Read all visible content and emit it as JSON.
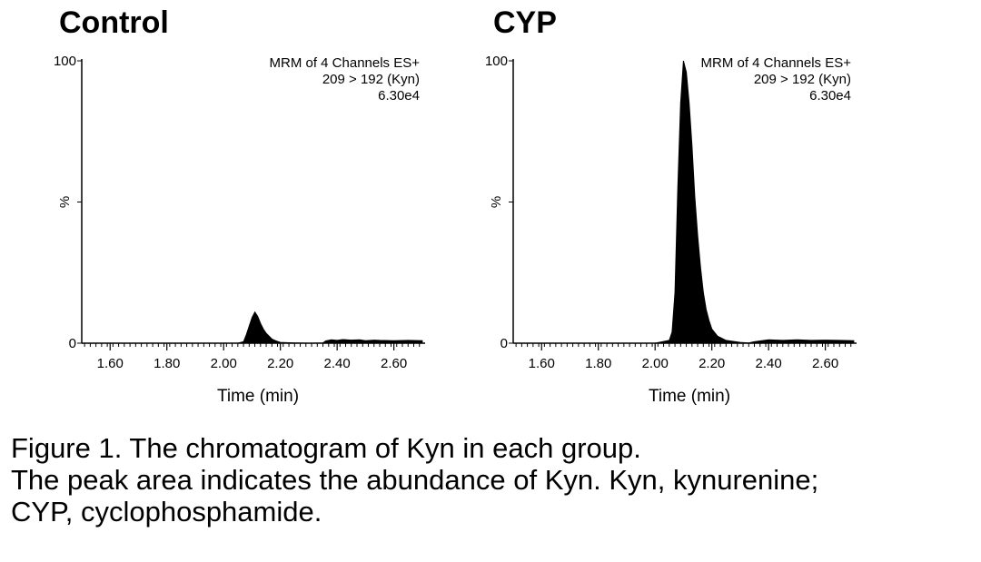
{
  "panels": [
    {
      "title": "Control",
      "info_lines": [
        "MRM of 4 Channels ES+",
        "209 > 192 (Kyn)",
        "6.30e4"
      ]
    },
    {
      "title": "CYP",
      "info_lines": [
        "MRM of 4 Channels ES+",
        "209 > 192 (Kyn)",
        "6.30e4"
      ]
    }
  ],
  "caption": {
    "line1": "Figure 1. The chromatogram of Kyn in each group.",
    "line2": "The peak area indicates the abundance of Kyn. Kyn, kynurenine;",
    "line3": "CYP, cyclophosphamide."
  },
  "chart_data": [
    {
      "type": "area",
      "title": "Control",
      "xlabel": "Time (min)",
      "ylabel": "%",
      "xlim": [
        1.5,
        2.71
      ],
      "ylim": [
        0,
        100
      ],
      "x_ticks": [
        "1.60",
        "1.80",
        "2.00",
        "2.20",
        "2.40",
        "2.60"
      ],
      "y_ticks": [
        "0",
        "100"
      ],
      "grid": false,
      "fill_color": "#000000",
      "x": [
        1.5,
        1.6,
        1.8,
        2.0,
        2.05,
        2.07,
        2.08,
        2.09,
        2.1,
        2.11,
        2.12,
        2.13,
        2.14,
        2.15,
        2.16,
        2.17,
        2.18,
        2.19,
        2.2,
        2.25,
        2.3,
        2.35,
        2.36,
        2.38,
        2.4,
        2.42,
        2.45,
        2.48,
        2.5,
        2.53,
        2.55,
        2.6,
        2.65,
        2.7
      ],
      "y": [
        0,
        0,
        0,
        0,
        0,
        0.5,
        3,
        6,
        9,
        11,
        9.5,
        7,
        5,
        3.5,
        2.5,
        1.5,
        1,
        0.6,
        0.3,
        0.1,
        0,
        0.1,
        0.8,
        1.2,
        1.0,
        1.3,
        1.1,
        1.2,
        0.9,
        1.1,
        1.0,
        0.9,
        1.0,
        0.9
      ]
    },
    {
      "type": "area",
      "title": "CYP",
      "xlabel": "Time (min)",
      "ylabel": "%",
      "xlim": [
        1.5,
        2.71
      ],
      "ylim": [
        0,
        100
      ],
      "x_ticks": [
        "1.60",
        "1.80",
        "2.00",
        "2.20",
        "2.40",
        "2.60"
      ],
      "y_ticks": [
        "0",
        "100"
      ],
      "grid": false,
      "fill_color": "#000000",
      "x": [
        1.5,
        1.6,
        1.8,
        2.0,
        2.05,
        2.06,
        2.07,
        2.08,
        2.09,
        2.1,
        2.11,
        2.12,
        2.13,
        2.14,
        2.15,
        2.16,
        2.17,
        2.18,
        2.19,
        2.2,
        2.22,
        2.25,
        2.3,
        2.33,
        2.35,
        2.4,
        2.45,
        2.5,
        2.55,
        2.6,
        2.65,
        2.7
      ],
      "y": [
        0,
        0,
        0,
        0,
        1,
        4,
        18,
        55,
        85,
        100,
        96,
        85,
        70,
        52,
        38,
        27,
        18,
        12,
        8,
        5,
        2.5,
        1,
        0.3,
        0.1,
        0.5,
        1.2,
        1.0,
        1.2,
        1.0,
        1.1,
        1.0,
        0.9
      ]
    }
  ]
}
